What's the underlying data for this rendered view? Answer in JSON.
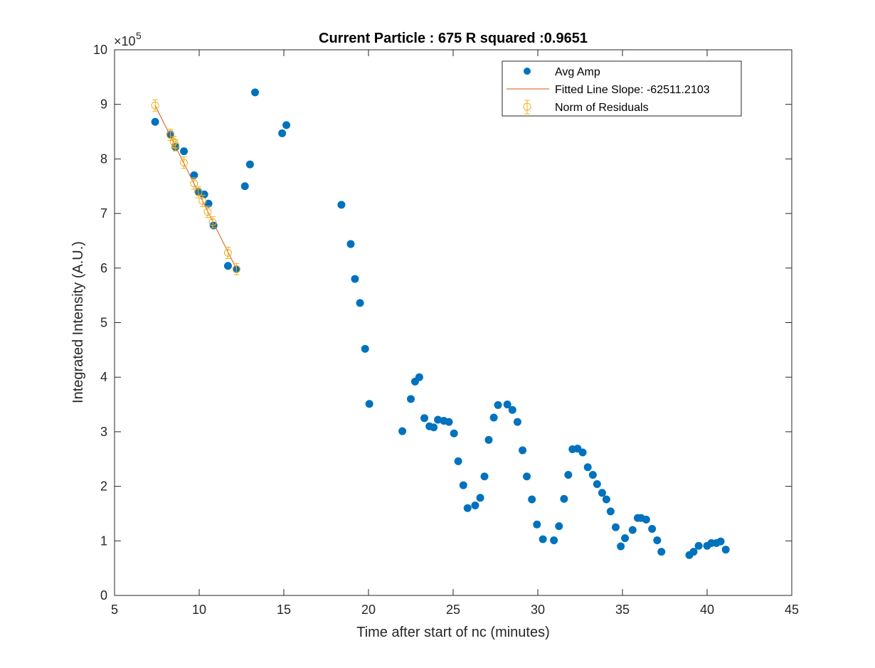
{
  "chart_data": {
    "type": "scatter",
    "title": "Current Particle : 675   R squared :0.9651",
    "xlabel": "Time after start of nc (minutes)",
    "ylabel": "Integrated Intensity (A.U.)",
    "xlim": [
      5,
      45
    ],
    "ylim": [
      0,
      10
    ],
    "y_exponent": "5",
    "x_ticks": [
      "5",
      "10",
      "15",
      "20",
      "25",
      "30",
      "35",
      "40",
      "45"
    ],
    "y_ticks": [
      "0",
      "1",
      "2",
      "3",
      "4",
      "5",
      "6",
      "7",
      "8",
      "9",
      "10"
    ],
    "grid": false,
    "legend_position": "top-right",
    "colors": {
      "avg_amp": "#0072BD",
      "fitted_line": "#D95319",
      "residuals": "#EDB120",
      "axes": "#262626"
    },
    "legend": [
      {
        "label": "Avg Amp",
        "marker": "filled-circle"
      },
      {
        "label": "Fitted Line Slope: -62511.2103",
        "marker": "line"
      },
      {
        "label": "Norm of Residuals",
        "marker": "open-circle-errorbar"
      }
    ],
    "series": [
      {
        "name": "Avg Amp",
        "x": [
          7.4,
          8.3,
          8.6,
          9.1,
          9.7,
          9.95,
          10.3,
          10.55,
          10.85,
          11.7,
          12.2,
          12.7,
          13.0,
          13.3,
          14.9,
          15.15,
          18.4,
          18.95,
          19.2,
          19.5,
          19.8,
          20.05,
          22.0,
          22.5,
          22.75,
          23.0,
          23.3,
          23.6,
          23.85,
          24.1,
          24.45,
          24.75,
          25.05,
          25.3,
          25.6,
          25.85,
          26.3,
          26.6,
          26.85,
          27.1,
          27.4,
          27.65,
          28.2,
          28.5,
          28.8,
          29.1,
          29.35,
          29.65,
          29.95,
          30.3,
          30.95,
          31.25,
          31.55,
          31.8,
          32.05,
          32.35,
          32.65,
          32.95,
          33.25,
          33.5,
          33.8,
          34.05,
          34.3,
          34.6,
          34.9,
          35.15,
          35.6,
          35.9,
          36.1,
          36.4,
          36.75,
          37.05,
          37.3,
          38.95,
          39.2,
          39.5,
          40.0,
          40.25,
          40.55,
          40.8,
          41.1
        ],
        "y": [
          8.68,
          8.45,
          8.22,
          8.14,
          7.7,
          7.4,
          7.35,
          7.18,
          6.78,
          6.04,
          5.98,
          7.5,
          7.9,
          9.22,
          8.47,
          8.62,
          7.16,
          6.44,
          5.8,
          5.36,
          4.52,
          3.51,
          3.01,
          3.6,
          3.92,
          4.0,
          3.25,
          3.1,
          3.08,
          3.22,
          3.2,
          3.18,
          2.97,
          2.46,
          2.02,
          1.6,
          1.65,
          1.79,
          2.18,
          2.85,
          3.26,
          3.49,
          3.5,
          3.4,
          3.18,
          2.66,
          2.18,
          1.76,
          1.3,
          1.03,
          1.01,
          1.27,
          1.77,
          2.21,
          2.68,
          2.69,
          2.62,
          2.35,
          2.21,
          2.04,
          1.88,
          1.76,
          1.54,
          1.25,
          0.9,
          1.05,
          1.2,
          1.42,
          1.42,
          1.39,
          1.22,
          1.01,
          0.8,
          0.74,
          0.8,
          0.91,
          0.91,
          0.96,
          0.96,
          0.99,
          0.84
        ]
      },
      {
        "name": "Fitted Line Slope: -62511.2103",
        "x": [
          7.4,
          12.2
        ],
        "y": [
          8.98,
          5.98
        ]
      },
      {
        "name": "Norm of Residuals",
        "x": [
          7.4,
          8.3,
          8.5,
          8.6,
          9.1,
          9.7,
          9.95,
          10.2,
          10.5,
          10.8,
          11.7,
          12.2
        ],
        "y": [
          8.98,
          8.44,
          8.31,
          8.25,
          7.93,
          7.55,
          7.39,
          7.23,
          7.03,
          6.84,
          6.28,
          5.98
        ]
      }
    ]
  }
}
